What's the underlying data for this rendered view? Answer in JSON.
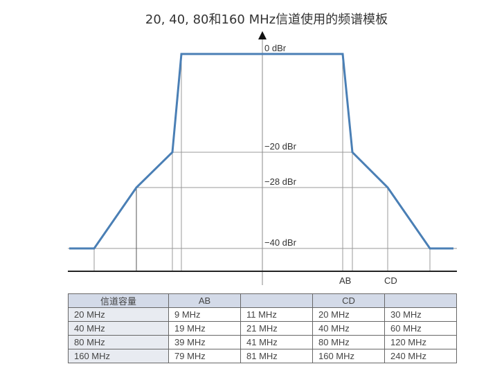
{
  "title": "20, 40, 80和160 MHz信道使用的频谱模板",
  "diagram": {
    "levels": [
      "0 dBr",
      "−20 dBr",
      "−28 dBr",
      "−40 dBr"
    ],
    "x_markers": [
      "AB",
      "CD"
    ],
    "mask_color": "#4a7fb5"
  },
  "table": {
    "headers": [
      "信道容量",
      "AB",
      "",
      "CD",
      ""
    ],
    "rows": [
      [
        "20 MHz",
        "9 MHz",
        "11 MHz",
        "20 MHz",
        "30 MHz"
      ],
      [
        "40 MHz",
        "19 MHz",
        "21 MHz",
        "40 MHz",
        "60 MHz"
      ],
      [
        "80 MHz",
        "39 MHz",
        "41 MHz",
        "80 MHz",
        "120 MHz"
      ],
      [
        "160 MHz",
        "79 MHz",
        "81 MHz",
        "160 MHz",
        "240 MHz"
      ]
    ]
  }
}
